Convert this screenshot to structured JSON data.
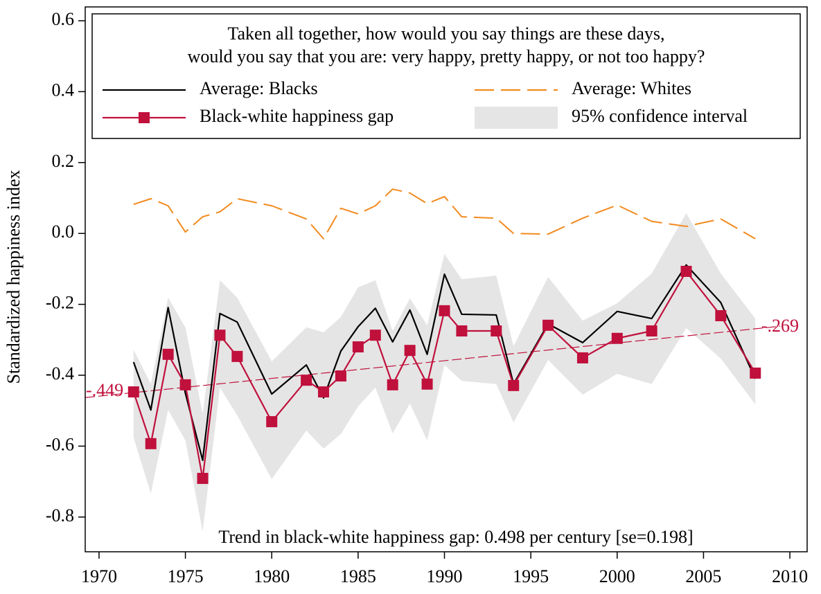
{
  "chart_data": {
    "type": "line",
    "legend_title": [
      "Taken all together, how would you say things are these days,",
      "would you say that you are: very happy, pretty happy, or not too happy?"
    ],
    "y_label": "Standardized happiness index",
    "annotation": "Trend in black-white happiness gap: 0.498 per century [se=0.198]",
    "x": [
      1972,
      1973,
      1974,
      1975,
      1976,
      1977,
      1978,
      1980,
      1982,
      1983,
      1984,
      1985,
      1986,
      1987,
      1988,
      1989,
      1990,
      1991,
      1993,
      1994,
      1996,
      1998,
      2000,
      2002,
      2004,
      2006,
      2008
    ],
    "xlim": [
      1969.2,
      2011
    ],
    "xticks": [
      1970,
      1975,
      1980,
      1985,
      1990,
      1995,
      2000,
      2005,
      2010
    ],
    "ylim": [
      -0.898,
      0.639
    ],
    "yticks": [
      0.6,
      0.4,
      0.2,
      {
        "value": 0,
        "label": "0.0"
      },
      -0.2,
      -0.4,
      -0.6,
      -0.8
    ],
    "ci": {
      "name": "95% confidence interval",
      "color": "#e5e5e5",
      "upper": [
        -0.328,
        -0.425,
        -0.181,
        -0.265,
        -0.509,
        -0.132,
        -0.181,
        -0.361,
        -0.265,
        -0.279,
        -0.236,
        -0.152,
        -0.132,
        -0.275,
        -0.183,
        -0.259,
        -0.058,
        -0.129,
        -0.119,
        -0.318,
        -0.123,
        -0.246,
        -0.197,
        -0.113,
        0.057,
        -0.113,
        -0.24
      ],
      "lower": [
        -0.576,
        -0.734,
        -0.498,
        -0.584,
        -0.841,
        -0.435,
        -0.513,
        -0.693,
        -0.556,
        -0.607,
        -0.566,
        -0.488,
        -0.435,
        -0.564,
        -0.48,
        -0.584,
        -0.371,
        -0.416,
        -0.425,
        -0.533,
        -0.357,
        -0.455,
        -0.396,
        -0.425,
        -0.267,
        -0.353,
        -0.482
      ]
    },
    "series": [
      {
        "name": "Average: Blacks",
        "color": "#000000",
        "dash": false,
        "markers": false,
        "values": [
          -0.363,
          -0.498,
          -0.209,
          -0.451,
          -0.64,
          -0.226,
          -0.25,
          -0.453,
          -0.371,
          -0.464,
          -0.332,
          -0.263,
          -0.211,
          -0.306,
          -0.216,
          -0.341,
          -0.115,
          -0.228,
          -0.23,
          -0.425,
          -0.255,
          -0.308,
          -0.22,
          -0.24,
          -0.089,
          -0.195,
          -0.41
        ]
      },
      {
        "name": "Average: Whites",
        "color": "#f28a1e",
        "dash": true,
        "markers": false,
        "values": [
          0.082,
          0.098,
          0.078,
          0.004,
          0.047,
          0.061,
          0.098,
          0.078,
          0.041,
          -0.015,
          0.071,
          0.055,
          0.078,
          0.125,
          0.114,
          0.084,
          0.104,
          0.047,
          0.043,
          0.0,
          -0.002,
          0.043,
          0.08,
          0.034,
          0.02,
          0.041,
          -0.015
        ]
      },
      {
        "name": "Black-white happiness gap",
        "color": "#c0103c",
        "dash": false,
        "markers": true,
        "values": [
          -0.447,
          -0.593,
          -0.341,
          -0.427,
          -0.691,
          -0.287,
          -0.347,
          -0.531,
          -0.414,
          -0.447,
          -0.402,
          -0.32,
          -0.287,
          -0.427,
          -0.33,
          -0.425,
          -0.218,
          -0.275,
          -0.275,
          -0.429,
          -0.259,
          -0.351,
          -0.296,
          -0.275,
          -0.107,
          -0.232,
          -0.394
        ]
      }
    ],
    "trend": {
      "color": "#c0103c",
      "x": [
        1972,
        2008
      ],
      "values": [
        -0.449,
        -0.269
      ],
      "value_labels": [
        "-.449",
        "-.269"
      ]
    }
  }
}
